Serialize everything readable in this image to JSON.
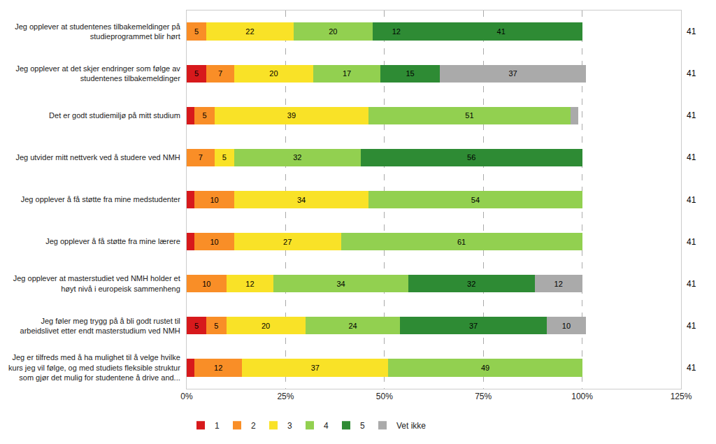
{
  "chart_data": {
    "type": "bar",
    "orientation": "horizontal",
    "stacked": true,
    "categories": [
      "Jeg opplever at studentenes tilbakemeldinger på\nstudieprogrammet blir hørt",
      "Jeg opplever at det skjer endringer som følge av\nstudentenes tilbakemeldinger",
      "Det er godt studiemiljø på mitt studium",
      "Jeg utvider mitt nettverk ved å studere ved NMH",
      "Jeg opplever å få støtte fra mine medstudenter",
      "Jeg opplever å få støtte fra mine lærere",
      "Jeg opplever at masterstudiet ved NMH holder et\nhøyt nivå i europeisk sammenheng",
      "Jeg føler meg trygg på å bli godt rustet til\narbeidslivet etter endt masterstudium ved NMH",
      "Jeg er tilfreds med å ha mulighet til å velge hvilke\nkurs jeg vil følge, og med studiets fleksible struktur\nsom gjør det mulig for studentene å drive and..."
    ],
    "series": [
      {
        "name": "1",
        "color": "#d7191c",
        "values": [
          0,
          5,
          2,
          0,
          2,
          2,
          0,
          5,
          2
        ],
        "value_labels": [
          null,
          "5",
          null,
          null,
          null,
          null,
          null,
          "5",
          null
        ]
      },
      {
        "name": "2",
        "color": "#f98e27",
        "values": [
          5,
          7,
          5,
          7,
          10,
          10,
          10,
          5,
          12
        ],
        "value_labels": [
          "5",
          "7",
          "5",
          "7",
          "10",
          "10",
          "10",
          "5",
          "12"
        ]
      },
      {
        "name": "3",
        "color": "#f9e227",
        "values": [
          22,
          20,
          39,
          5,
          34,
          27,
          12,
          20,
          37
        ],
        "value_labels": [
          "22",
          "20",
          "39",
          "5",
          "34",
          "27",
          "12",
          "20",
          "37"
        ]
      },
      {
        "name": "4",
        "color": "#92d050",
        "values": [
          20,
          17,
          51,
          32,
          54,
          61,
          34,
          24,
          49
        ],
        "value_labels": [
          "20",
          "17",
          "51",
          "32",
          "54",
          "61",
          "34",
          "24",
          "49"
        ]
      },
      {
        "name": "5",
        "color": "#2e8b34",
        "values": [
          12,
          15,
          0,
          56,
          0,
          0,
          32,
          37,
          0
        ],
        "value_labels": [
          "12",
          "15",
          null,
          "56",
          null,
          null,
          "32",
          "37",
          null
        ]
      },
      {
        "color": "#2e8b34",
        "values": [
          41,
          0,
          0,
          0,
          0,
          0,
          0,
          0,
          0
        ],
        "value_labels": [
          "41",
          null,
          null,
          null,
          null,
          null,
          null,
          null,
          null
        ]
      },
      {
        "name": "Vet ikke",
        "color": "#aaaaaa",
        "values": [
          0,
          37,
          2,
          0,
          0,
          0,
          12,
          10,
          0
        ],
        "value_labels": [
          null,
          "37",
          null,
          null,
          null,
          null,
          "12",
          "10",
          null
        ]
      }
    ],
    "n_values": [
      41,
      41,
      41,
      41,
      41,
      41,
      41,
      41,
      41
    ],
    "xlim": [
      0,
      125
    ],
    "xticks": [
      {
        "value": 0,
        "label": "0%"
      },
      {
        "value": 25,
        "label": "25%"
      },
      {
        "value": 50,
        "label": "50%"
      },
      {
        "value": 75,
        "label": "75%"
      },
      {
        "value": 100,
        "label": "100%"
      },
      {
        "value": 125,
        "label": "125%"
      }
    ],
    "grid": true,
    "legend": "lower left",
    "data_labels": true
  }
}
